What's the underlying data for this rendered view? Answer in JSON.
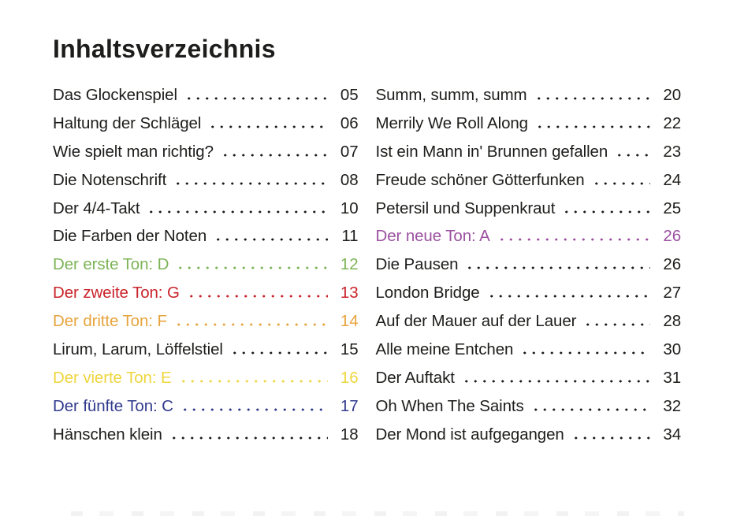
{
  "page_title": "Inhaltsverzeichnis",
  "colors": {
    "text": "#1d1d1b",
    "green": "#7db457",
    "red": "#c9242b",
    "orange": "#e7a43e",
    "yellow": "#eed63f",
    "blue": "#323b8d",
    "purple": "#9b51a0"
  },
  "toc": {
    "columns": [
      {
        "entries": [
          {
            "label": "Das Glockenspiel",
            "page": "05",
            "color": "#1d1d1b"
          },
          {
            "label": "Haltung der Schlägel",
            "page": "06",
            "color": "#1d1d1b"
          },
          {
            "label": "Wie spielt man richtig?",
            "page": "07",
            "color": "#1d1d1b"
          },
          {
            "label": "Die Notenschrift",
            "page": "08",
            "color": "#1d1d1b"
          },
          {
            "label": "Der 4/4-Takt",
            "page": "10",
            "color": "#1d1d1b"
          },
          {
            "label": "Die Farben der Noten",
            "page": "11",
            "color": "#1d1d1b"
          },
          {
            "label": "Der erste Ton: D",
            "page": "12",
            "color": "#7db457"
          },
          {
            "label": "Der zweite Ton: G",
            "page": "13",
            "color": "#c9242b"
          },
          {
            "label": "Der dritte Ton: F",
            "page": "14",
            "color": "#e7a43e"
          },
          {
            "label": "Lirum, Larum, Löffelstiel",
            "page": "15",
            "color": "#1d1d1b"
          },
          {
            "label": "Der vierte Ton: E",
            "page": "16",
            "color": "#eed63f"
          },
          {
            "label": "Der fünfte Ton: C",
            "page": "17",
            "color": "#323b8d"
          },
          {
            "label": "Hänschen klein",
            "page": "18",
            "color": "#1d1d1b"
          }
        ]
      },
      {
        "entries": [
          {
            "label": "Summ, summ, summ",
            "page": "20",
            "color": "#1d1d1b"
          },
          {
            "label": "Merrily We Roll Along",
            "page": "22",
            "color": "#1d1d1b"
          },
          {
            "label": "Ist ein Mann in' Brunnen gefallen",
            "page": "23",
            "color": "#1d1d1b"
          },
          {
            "label": "Freude schöner Götterfunken",
            "page": "24",
            "color": "#1d1d1b"
          },
          {
            "label": "Petersil und Suppenkraut",
            "page": "25",
            "color": "#1d1d1b"
          },
          {
            "label": "Der neue Ton: A",
            "page": "26",
            "color": "#9b51a0"
          },
          {
            "label": "Die Pausen",
            "page": "26",
            "color": "#1d1d1b"
          },
          {
            "label": "London Bridge",
            "page": "27",
            "color": "#1d1d1b"
          },
          {
            "label": "Auf der Mauer auf der Lauer",
            "page": "28",
            "color": "#1d1d1b"
          },
          {
            "label": "Alle meine Entchen",
            "page": "30",
            "color": "#1d1d1b"
          },
          {
            "label": "Der Auftakt",
            "page": "31",
            "color": "#1d1d1b"
          },
          {
            "label": "Oh When The Saints",
            "page": "32",
            "color": "#1d1d1b"
          },
          {
            "label": "Der Mond ist aufgegangen",
            "page": "34",
            "color": "#1d1d1b"
          }
        ]
      }
    ]
  }
}
